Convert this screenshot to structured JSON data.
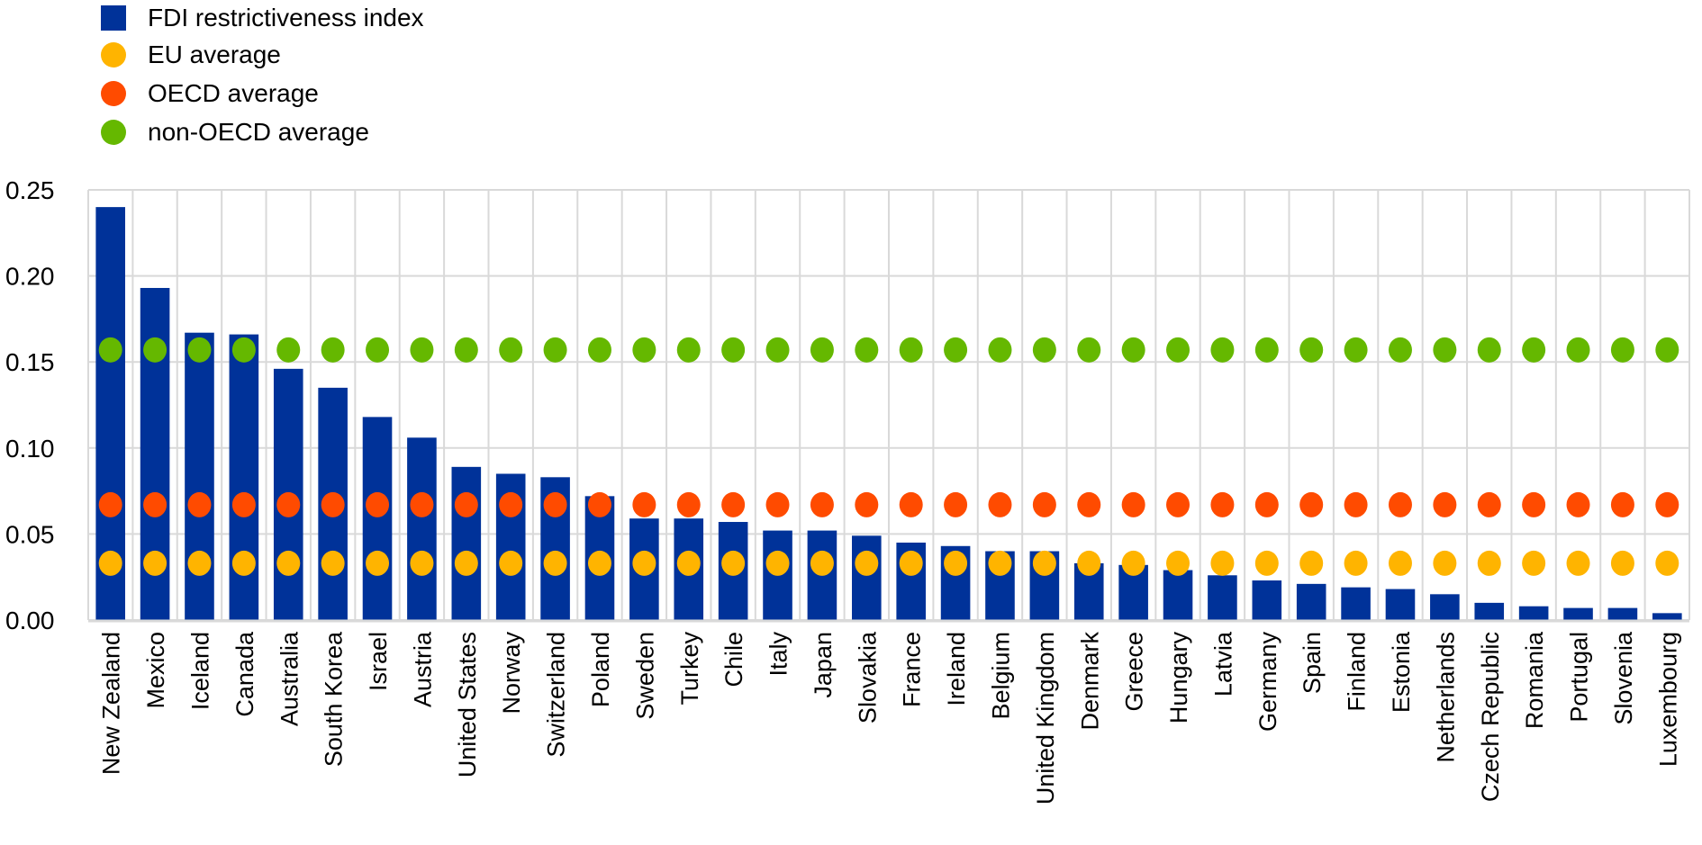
{
  "chart_data": {
    "type": "bar",
    "title": "",
    "xlabel": "",
    "ylabel": "",
    "ylim": [
      0,
      0.25
    ],
    "yticks": [
      "0.00",
      "0.05",
      "0.10",
      "0.15",
      "0.20",
      "0.25"
    ],
    "ytick_values": [
      0,
      0.05,
      0.1,
      0.15,
      0.2,
      0.25
    ],
    "grid": true,
    "legend_position": "top-left",
    "categories": [
      "New Zealand",
      "Mexico",
      "Iceland",
      "Canada",
      "Australia",
      "South Korea",
      "Israel",
      "Austria",
      "United States",
      "Norway",
      "Switzerland",
      "Poland",
      "Sweden",
      "Turkey",
      "Chile",
      "Italy",
      "Japan",
      "Slovakia",
      "France",
      "Ireland",
      "Belgium",
      "United Kingdom",
      "Denmark",
      "Greece",
      "Hungary",
      "Latvia",
      "Germany",
      "Spain",
      "Finland",
      "Estonia",
      "Netherlands",
      "Czech Republic",
      "Romania",
      "Portugal",
      "Slovenia",
      "Luxembourg"
    ],
    "series": [
      {
        "name": "FDI restrictiveness index",
        "type": "bar",
        "color": "#003299",
        "marker": "square",
        "values": [
          0.24,
          0.193,
          0.167,
          0.166,
          0.146,
          0.135,
          0.118,
          0.106,
          0.089,
          0.085,
          0.083,
          0.072,
          0.059,
          0.059,
          0.057,
          0.052,
          0.052,
          0.049,
          0.045,
          0.043,
          0.04,
          0.04,
          0.033,
          0.032,
          0.029,
          0.026,
          0.023,
          0.021,
          0.019,
          0.018,
          0.015,
          0.01,
          0.008,
          0.007,
          0.007,
          0.004
        ]
      },
      {
        "name": "EU average",
        "type": "scatter",
        "color": "#FFB400",
        "marker": "circle",
        "constant_value": 0.033
      },
      {
        "name": "OECD average",
        "type": "scatter",
        "color": "#FF4B00",
        "marker": "circle",
        "constant_value": 0.067
      },
      {
        "name": "non-OECD average",
        "type": "scatter",
        "color": "#65B800",
        "marker": "circle",
        "constant_value": 0.157
      }
    ]
  },
  "colors": {
    "grid": "#d9d9d9",
    "axis": "#d9d9d9",
    "text": "#000000"
  }
}
